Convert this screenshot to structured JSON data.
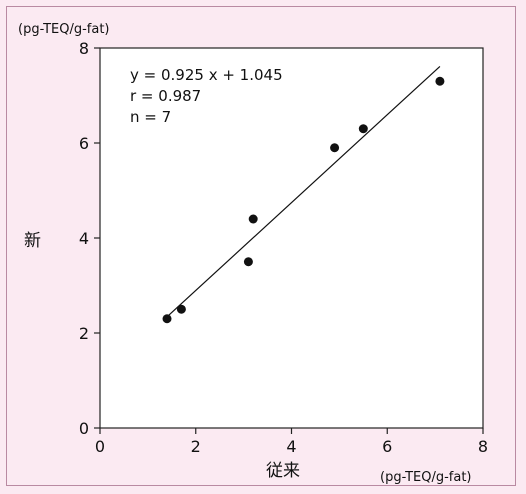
{
  "chart_data": {
    "type": "scatter",
    "title": "",
    "xlabel": "従来",
    "ylabel": "新",
    "x_unit": "(pg-TEQ/g-fat)",
    "y_unit": "(pg-TEQ/g-fat)",
    "xlim": [
      0,
      8
    ],
    "ylim": [
      0,
      8
    ],
    "x_ticks": [
      "0",
      "2",
      "4",
      "6",
      "8"
    ],
    "y_ticks": [
      "0",
      "2",
      "4",
      "6",
      "8"
    ],
    "grid": false,
    "points": [
      {
        "x": 1.4,
        "y": 2.3
      },
      {
        "x": 1.7,
        "y": 2.5
      },
      {
        "x": 3.1,
        "y": 3.5
      },
      {
        "x": 3.2,
        "y": 4.4
      },
      {
        "x": 4.9,
        "y": 5.9
      },
      {
        "x": 5.5,
        "y": 6.3
      },
      {
        "x": 7.1,
        "y": 7.3
      }
    ],
    "regression": {
      "slope": 0.925,
      "intercept": 1.045,
      "x_range": [
        1.4,
        7.1
      ]
    },
    "annotations": [
      "y = 0.925 x + 1.045",
      "r = 0.987",
      "n = 7"
    ],
    "colors": {
      "background": "#fbeaf2",
      "plot_area": "#ffffff",
      "ink": "#111111"
    }
  }
}
